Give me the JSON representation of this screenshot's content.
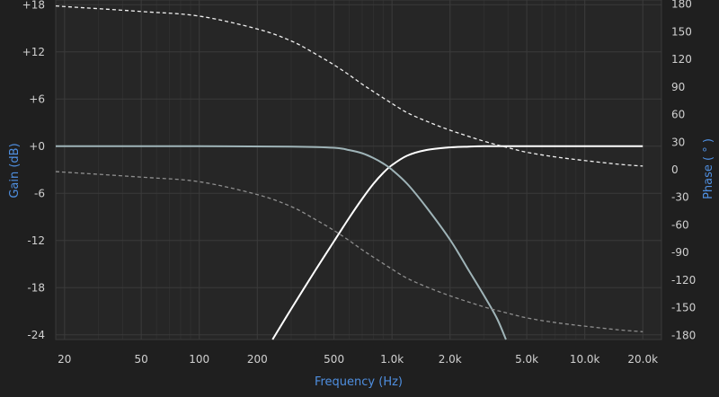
{
  "chart_data": {
    "type": "line",
    "xlabel": "Frequency (Hz)",
    "ylabel_left": "Gain (dB)",
    "ylabel_right": "Phase ( ° )",
    "x_scale": "log",
    "xlim": [
      18,
      25000
    ],
    "ylim_left": [
      -24.6,
      18.6
    ],
    "ylim_right": [
      -184.5,
      184.5
    ],
    "x_ticks": [
      {
        "value": 20,
        "label": "20"
      },
      {
        "value": 50,
        "label": "50"
      },
      {
        "value": 100,
        "label": "100"
      },
      {
        "value": 200,
        "label": "200"
      },
      {
        "value": 500,
        "label": "500"
      },
      {
        "value": 1000,
        "label": "1.0k"
      },
      {
        "value": 2000,
        "label": "2.0k"
      },
      {
        "value": 5000,
        "label": "5.0k"
      },
      {
        "value": 10000,
        "label": "10.0k"
      },
      {
        "value": 20000,
        "label": "20.0k"
      }
    ],
    "y_left_ticks": [
      {
        "value": 18,
        "label": "+18"
      },
      {
        "value": 12,
        "label": "+12"
      },
      {
        "value": 6,
        "label": "+6"
      },
      {
        "value": 0,
        "label": "+0"
      },
      {
        "value": -6,
        "label": "-6"
      },
      {
        "value": -12,
        "label": "-12"
      },
      {
        "value": -18,
        "label": "-18"
      },
      {
        "value": -24,
        "label": "-24"
      }
    ],
    "y_right_ticks": [
      {
        "value": 180,
        "label": "180"
      },
      {
        "value": 150,
        "label": "150"
      },
      {
        "value": 120,
        "label": "120"
      },
      {
        "value": 90,
        "label": "90"
      },
      {
        "value": 60,
        "label": "60"
      },
      {
        "value": 30,
        "label": "30"
      },
      {
        "value": 0,
        "label": "0"
      },
      {
        "value": -30,
        "label": "-30"
      },
      {
        "value": -60,
        "label": "-60"
      },
      {
        "value": -90,
        "label": "-90"
      },
      {
        "value": -120,
        "label": "-120"
      },
      {
        "value": -150,
        "label": "-150"
      },
      {
        "value": -180,
        "label": "-180"
      }
    ],
    "grid": true,
    "series": [
      {
        "axis": "left",
        "style": "solid",
        "color": "#ffffff",
        "x": [
          240,
          300,
          400,
          500,
          600,
          700,
          800,
          900,
          1000,
          1200,
          1500,
          2000,
          2500,
          3000,
          4000,
          5000,
          20000
        ],
        "y": [
          -24.6,
          -20.7,
          -15.8,
          -12.1,
          -9.1,
          -6.7,
          -4.8,
          -3.4,
          -2.4,
          -1.2,
          -0.5,
          -0.15,
          -0.05,
          0,
          0,
          0,
          0
        ]
      },
      {
        "axis": "left",
        "style": "solid",
        "color": "#9fb4b8",
        "x": [
          18,
          100,
          300,
          500,
          600,
          700,
          800,
          900,
          1000,
          1200,
          1500,
          2000,
          2500,
          3000,
          3500,
          3900
        ],
        "y": [
          0,
          0,
          -0.05,
          -0.2,
          -0.5,
          -0.9,
          -1.5,
          -2.2,
          -3.0,
          -4.8,
          -7.7,
          -11.9,
          -15.8,
          -19.0,
          -21.9,
          -24.6
        ]
      },
      {
        "axis": "right",
        "style": "dashed",
        "color": "#f0f0f0",
        "x": [
          18,
          50,
          100,
          200,
          300,
          400,
          500,
          600,
          700,
          800,
          1000,
          1200,
          1500,
          2000,
          3000,
          4000,
          5000,
          7000,
          10000,
          15000,
          20000
        ],
        "y": [
          178,
          172,
          167,
          153,
          140,
          126,
          114,
          103,
          93,
          85,
          72,
          62,
          53,
          43,
          31,
          24,
          19,
          14,
          10,
          6,
          4
        ]
      },
      {
        "axis": "right",
        "style": "dashed",
        "color": "#8e8e8e",
        "x": [
          18,
          50,
          100,
          200,
          300,
          400,
          500,
          600,
          700,
          800,
          1000,
          1200,
          1500,
          2000,
          3000,
          4000,
          5000,
          7000,
          10000,
          15000,
          20000
        ],
        "y": [
          -2,
          -8,
          -13,
          -27,
          -40,
          -54,
          -66,
          -77,
          -87,
          -95,
          -108,
          -118,
          -127,
          -137,
          -149,
          -156,
          -161,
          -166,
          -170,
          -174,
          -176
        ]
      }
    ]
  }
}
